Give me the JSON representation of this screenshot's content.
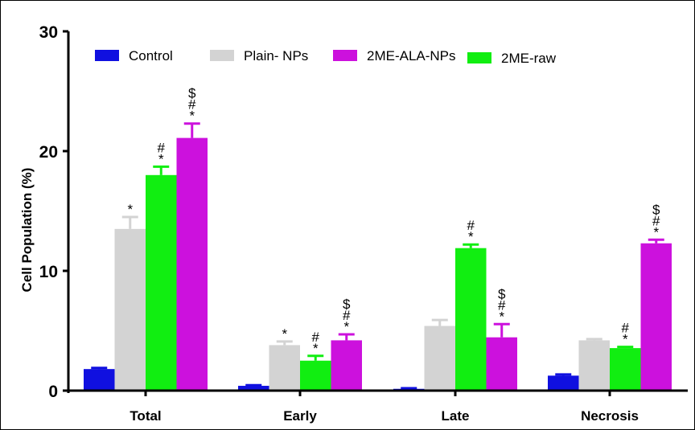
{
  "chart_data": {
    "type": "bar",
    "title": "",
    "xlabel": "",
    "ylabel": "Cell Population (%)",
    "ylim": [
      0,
      30
    ],
    "yticks": [
      0,
      10,
      20,
      30
    ],
    "categories": [
      "Total",
      "Early",
      "Late",
      "Necrosis"
    ],
    "legend_position": "top",
    "series": [
      {
        "name": "Control",
        "color": "#1010e0",
        "values": [
          1.8,
          0.4,
          0.15,
          1.25
        ],
        "errors": [
          0.1,
          0.05,
          0.05,
          0.1
        ],
        "annotations": [
          "",
          "",
          "",
          ""
        ]
      },
      {
        "name": "Plain- NPs",
        "color": "#d3d3d3",
        "values": [
          13.5,
          3.8,
          5.4,
          4.2
        ],
        "errors": [
          1.0,
          0.3,
          0.5,
          0.1
        ],
        "annotations": [
          "*",
          "*",
          "",
          ""
        ]
      },
      {
        "name": "2ME-raw",
        "color": "#11ee11",
        "values": [
          18.0,
          2.5,
          11.9,
          3.55
        ],
        "errors": [
          0.7,
          0.4,
          0.3,
          0.1
        ],
        "annotations": [
          "*\n#",
          "*\n#",
          "*\n#",
          "*\n#"
        ]
      },
      {
        "name": "2ME-ALA-NPs",
        "color": "#cc11dd",
        "values": [
          21.1,
          4.2,
          4.45,
          12.3
        ],
        "errors": [
          1.2,
          0.5,
          1.1,
          0.3
        ],
        "annotations": [
          "*\n#\n$",
          "*\n#\n$",
          "*\n#\n$",
          "*\n#\n$"
        ]
      }
    ],
    "legend_order": [
      "Control",
      "Plain- NPs",
      "2ME-ALA-NPs",
      "2ME-raw"
    ]
  }
}
